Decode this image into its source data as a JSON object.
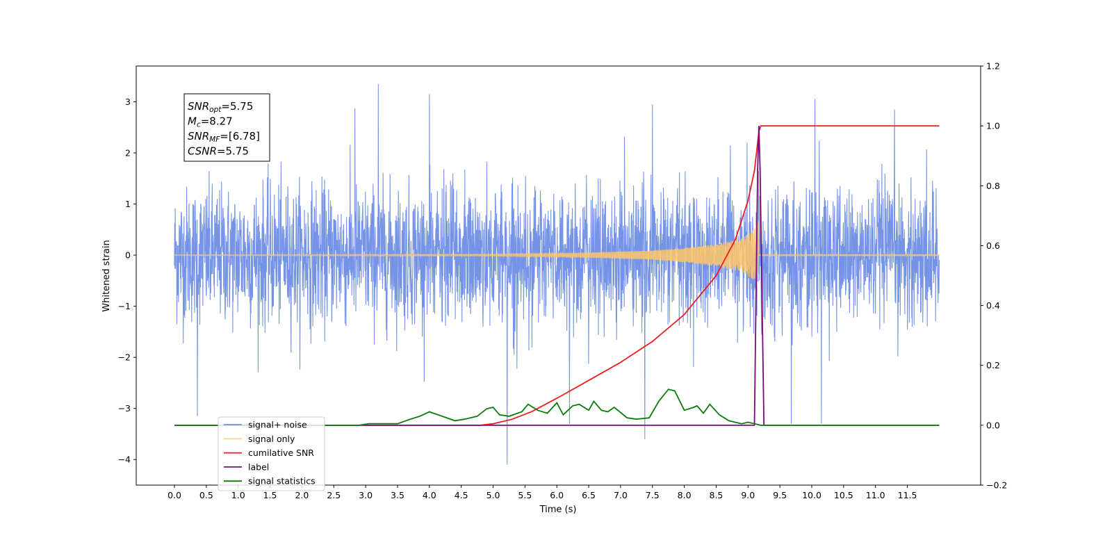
{
  "chart_data": {
    "type": "line",
    "xlabel": "Time (s)",
    "ylabel": "Whitened strain",
    "xlim": [
      -0.6,
      12.65
    ],
    "ylim_left": [
      -4.5,
      3.7
    ],
    "ylim_right": [
      -0.2,
      1.2
    ],
    "x_ticks": [
      "0.0",
      "0.5",
      "1.0",
      "1.5",
      "2.0",
      "2.5",
      "3.0",
      "3.5",
      "4.0",
      "4.5",
      "5.0",
      "5.5",
      "6.0",
      "6.5",
      "7.0",
      "7.5",
      "8.0",
      "8.5",
      "9.0",
      "9.5",
      "10.0",
      "10.5",
      "11.0",
      "11.5"
    ],
    "y_ticks_left": [
      "3",
      "2",
      "1",
      "0",
      "−1",
      "−2",
      "−3",
      "−4"
    ],
    "y_ticks_right": [
      "1.2",
      "1.0",
      "0.8",
      "0.6",
      "0.4",
      "0.2",
      "0.0",
      "−0.2"
    ],
    "annotation": {
      "lines": [
        {
          "base": "SNR",
          "sub": "opt",
          "rest": "=5.75"
        },
        {
          "base": "M",
          "sub": "c",
          "rest": "=8.27"
        },
        {
          "base": "SNR",
          "sub": "MF",
          "rest": "=[6.78]"
        },
        {
          "base": "CSNR",
          "sub": "",
          "rest": "=5.75"
        }
      ]
    },
    "legend": {
      "position": "lower-left",
      "entries": [
        {
          "label": "signal+ noise",
          "color": "#6f8ee6"
        },
        {
          "label": "signal only",
          "color": "#ffc766"
        },
        {
          "label": "cumilative SNR",
          "color": "#ee1c1c"
        },
        {
          "label": "label",
          "color": "#7a0a7a"
        },
        {
          "label": "signal statistics",
          "color": "#0a7a0a"
        }
      ]
    },
    "series": [
      {
        "name": "signal+ noise",
        "axis": "left",
        "kind": "noise",
        "x_range": [
          0.0,
          12.0
        ],
        "mean": 0.0,
        "typical_envelope": [
          -1.4,
          1.5
        ],
        "spikes": [
          {
            "x": 0.36,
            "y": -3.15
          },
          {
            "x": 3.2,
            "y": 3.35
          },
          {
            "x": 4.0,
            "y": 3.15
          },
          {
            "x": 5.22,
            "y": -4.1
          },
          {
            "x": 6.2,
            "y": -3.3
          },
          {
            "x": 7.38,
            "y": -3.6
          },
          {
            "x": 7.5,
            "y": 2.95
          },
          {
            "x": 9.68,
            "y": -3.3
          },
          {
            "x": 10.05,
            "y": 3.05
          },
          {
            "x": 10.15,
            "y": -3.3
          },
          {
            "x": 11.3,
            "y": 2.85
          },
          {
            "x": 2.83,
            "y": 2.87
          }
        ]
      },
      {
        "name": "signal only",
        "axis": "left",
        "kind": "chirp",
        "x_range": [
          0.0,
          12.0
        ],
        "merger_time": 9.17,
        "amplitude": [
          [
            0.0,
            0.01
          ],
          [
            5.0,
            0.02
          ],
          [
            6.5,
            0.05
          ],
          [
            7.5,
            0.09
          ],
          [
            8.0,
            0.14
          ],
          [
            8.5,
            0.22
          ],
          [
            8.9,
            0.33
          ],
          [
            9.1,
            0.5
          ],
          [
            9.17,
            0.72
          ],
          [
            9.2,
            0.0
          ]
        ]
      },
      {
        "name": "cumilative SNR",
        "axis": "right",
        "x": [
          0.0,
          4.8,
          5.0,
          5.3,
          5.6,
          6.0,
          6.5,
          7.0,
          7.5,
          8.0,
          8.5,
          8.8,
          9.0,
          9.1,
          9.17,
          9.2,
          12.0
        ],
        "y": [
          0.0,
          0.0,
          0.005,
          0.02,
          0.045,
          0.09,
          0.15,
          0.21,
          0.28,
          0.37,
          0.5,
          0.62,
          0.75,
          0.85,
          0.98,
          1.0,
          1.0
        ]
      },
      {
        "name": "label",
        "axis": "right",
        "x": [
          0.0,
          9.1,
          9.15,
          9.17,
          9.19,
          9.25,
          9.27,
          12.0
        ],
        "y": [
          0.0,
          0.0,
          0.85,
          1.0,
          0.85,
          0.0,
          0.0,
          0.0
        ]
      },
      {
        "name": "signal statistics",
        "axis": "right",
        "x": [
          0.0,
          2.9,
          3.05,
          3.5,
          3.7,
          3.85,
          4.0,
          4.2,
          4.4,
          4.55,
          4.75,
          4.9,
          5.0,
          5.1,
          5.25,
          5.45,
          5.55,
          5.7,
          5.85,
          6.0,
          6.1,
          6.25,
          6.35,
          6.5,
          6.58,
          6.7,
          6.8,
          6.9,
          7.1,
          7.25,
          7.45,
          7.6,
          7.75,
          7.85,
          8.0,
          8.15,
          8.2,
          8.3,
          8.4,
          8.55,
          8.7,
          8.9,
          9.0,
          9.2,
          12.0
        ],
        "y": [
          0.0,
          0.0,
          0.005,
          0.005,
          0.02,
          0.03,
          0.045,
          0.03,
          0.015,
          0.02,
          0.03,
          0.055,
          0.06,
          0.035,
          0.03,
          0.045,
          0.07,
          0.05,
          0.04,
          0.075,
          0.035,
          0.065,
          0.07,
          0.05,
          0.08,
          0.05,
          0.045,
          0.06,
          0.025,
          0.02,
          0.025,
          0.08,
          0.12,
          0.115,
          0.05,
          0.06,
          0.065,
          0.04,
          0.07,
          0.035,
          0.015,
          0.005,
          0.01,
          0.0,
          0.0
        ]
      }
    ]
  }
}
